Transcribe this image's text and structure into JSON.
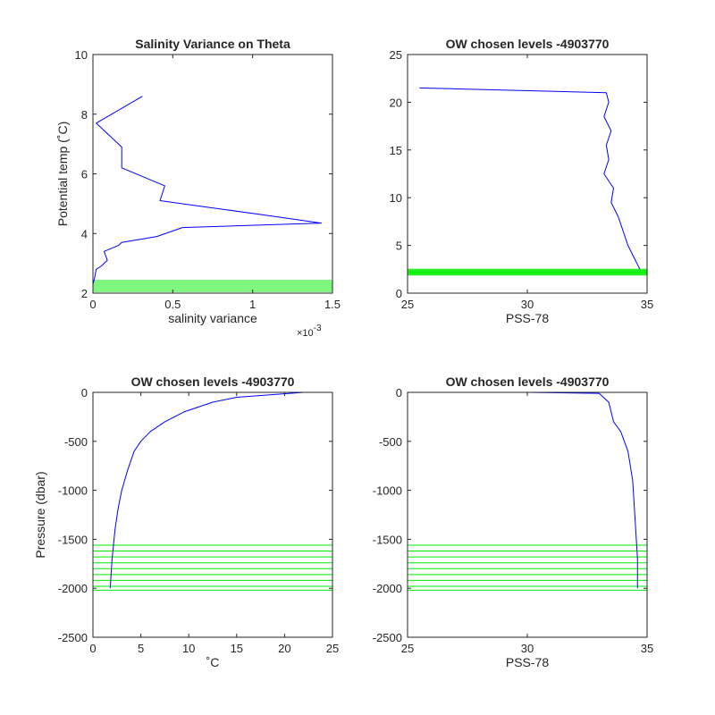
{
  "colors": {
    "profile": "#0000ff",
    "levels": "#00ee00",
    "axes": "#262626"
  },
  "chart_data": [
    {
      "type": "line",
      "title": "Salinity Variance on Theta",
      "xlabel": "salinity variance",
      "ylabel": "Potential temp (˚C)",
      "x_exponent_base": "×10",
      "x_exponent": "-3",
      "xlim": [
        0,
        1.5
      ],
      "ylim": [
        2,
        10
      ],
      "xticks": [
        0,
        0.5,
        1,
        1.5
      ],
      "xticklabels": [
        "0",
        "0.5",
        "1",
        "1.5"
      ],
      "yticks": [
        2,
        4,
        6,
        8,
        10
      ],
      "yticklabels": [
        "2",
        "4",
        "6",
        "8",
        "10"
      ],
      "series": [
        {
          "x": [
            0.31,
            0.02,
            0.18,
            0.18,
            0.45,
            0.42,
            1.1,
            1.43,
            0.56,
            0.4,
            0.18,
            0.16,
            0.07,
            0.09,
            0.05,
            0.02,
            0.01,
            0.0
          ],
          "y": [
            8.6,
            7.7,
            6.9,
            6.2,
            5.6,
            5.1,
            4.6,
            4.35,
            4.2,
            3.9,
            3.7,
            3.6,
            3.4,
            3.1,
            2.9,
            2.8,
            2.5,
            2.3
          ]
        }
      ],
      "hlines": [
        2.0,
        2.06,
        2.12,
        2.18,
        2.24,
        2.3,
        2.36,
        2.42
      ],
      "grid": false
    },
    {
      "type": "line",
      "title": "OW chosen levels -4903770",
      "xlabel": "PSS-78",
      "ylabel": "",
      "xlim": [
        25,
        35
      ],
      "ylim": [
        0,
        25
      ],
      "xticks": [
        25,
        30,
        35
      ],
      "xticklabels": [
        "25",
        "30",
        "35"
      ],
      "yticks": [
        0,
        5,
        10,
        15,
        20,
        25
      ],
      "yticklabels": [
        "0",
        "5",
        "10",
        "15",
        "20",
        "25"
      ],
      "series": [
        {
          "x": [
            25.5,
            33.3,
            33.4,
            33.2,
            33.5,
            33.3,
            33.4,
            33.2,
            33.6,
            33.5,
            33.8,
            34.0,
            34.2,
            34.5,
            34.7
          ],
          "y": [
            21.5,
            21.0,
            20.0,
            18.5,
            17.0,
            15.5,
            14.0,
            12.5,
            11.0,
            9.5,
            8.0,
            6.5,
            5.0,
            3.5,
            2.5
          ]
        }
      ],
      "hlines": [
        1.9,
        2.0,
        2.1,
        2.2,
        2.3,
        2.4,
        2.5
      ],
      "grid": false
    },
    {
      "type": "line",
      "title": "OW chosen levels -4903770",
      "xlabel": "˚C",
      "ylabel": "Pressure (dbar)",
      "xlim": [
        0,
        25
      ],
      "ylim": [
        -2500,
        0
      ],
      "xticks": [
        0,
        5,
        10,
        15,
        20,
        25
      ],
      "xticklabels": [
        "0",
        "5",
        "10",
        "15",
        "20",
        "25"
      ],
      "yticks": [
        -2500,
        -2000,
        -1500,
        -1000,
        -500,
        0
      ],
      "yticklabels": [
        "-2500",
        "-2000",
        "-1500",
        "-1000",
        "-500",
        "0"
      ],
      "series": [
        {
          "x": [
            22.0,
            15.0,
            12.5,
            9.5,
            7.5,
            6.0,
            5.0,
            4.3,
            3.6,
            3.0,
            2.6,
            2.3,
            2.0,
            1.8
          ],
          "y": [
            0,
            -50,
            -100,
            -200,
            -300,
            -400,
            -500,
            -600,
            -800,
            -1000,
            -1200,
            -1400,
            -1700,
            -2000
          ]
        }
      ],
      "hlines": [
        -1560,
        -1620,
        -1680,
        -1740,
        -1800,
        -1860,
        -1920,
        -1980,
        -2020
      ],
      "grid": false
    },
    {
      "type": "line",
      "title": "OW chosen levels -4903770",
      "xlabel": "PSS-78",
      "ylabel": "",
      "xlim": [
        25,
        35
      ],
      "ylim": [
        -2500,
        0
      ],
      "xticks": [
        25,
        30,
        35
      ],
      "xticklabels": [
        "25",
        "30",
        "35"
      ],
      "yticks": [
        -2500,
        -2000,
        -1500,
        -1000,
        -500,
        0
      ],
      "yticklabels": [
        "-2500",
        "-2000",
        "-1500",
        "-1000",
        "-500",
        "0"
      ],
      "series": [
        {
          "x": [
            25.5,
            30.0,
            33.0,
            33.4,
            33.5,
            33.6,
            33.9,
            34.2,
            34.4,
            34.5,
            34.6,
            34.6
          ],
          "y": [
            0,
            0,
            -10,
            -100,
            -200,
            -300,
            -400,
            -600,
            -900,
            -1300,
            -1700,
            -2000
          ]
        }
      ],
      "hlines": [
        -1560,
        -1620,
        -1680,
        -1740,
        -1800,
        -1860,
        -1920,
        -1980,
        -2020
      ],
      "grid": false
    }
  ]
}
